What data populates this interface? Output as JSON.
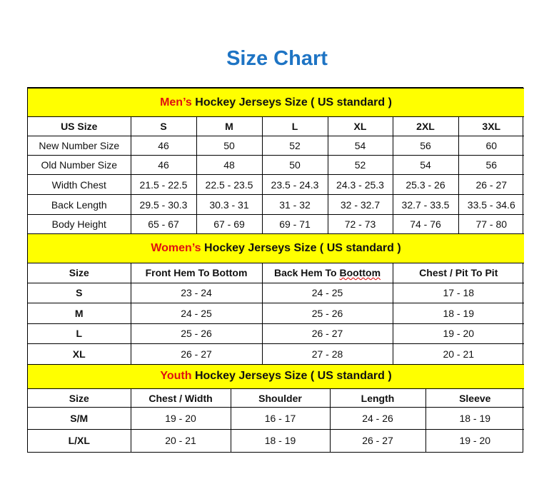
{
  "title": "Size Chart",
  "colors": {
    "title": "#1e74c4",
    "banner": "#ffff00",
    "highlight": "#e01010"
  },
  "men": {
    "banner_highlight": "Men’s",
    "banner_rest": " Hockey Jerseys Size ( US standard )",
    "headers": [
      "US Size",
      "S",
      "M",
      "L",
      "XL",
      "2XL",
      "3XL"
    ],
    "rows": [
      [
        "New Number Size",
        "46",
        "50",
        "52",
        "54",
        "56",
        "60"
      ],
      [
        "Old Number Size",
        "46",
        "48",
        "50",
        "52",
        "54",
        "56"
      ],
      [
        "Width Chest",
        "21.5 - 22.5",
        "22.5 - 23.5",
        "23.5 - 24.3",
        "24.3 - 25.3",
        "25.3 - 26",
        "26 - 27"
      ],
      [
        "Back Length",
        "29.5 - 30.3",
        "30.3 - 31",
        "31 - 32",
        "32 - 32.7",
        "32.7 - 33.5",
        "33.5 - 34.6"
      ],
      [
        "Body Height",
        "65 - 67",
        "67 - 69",
        "69 - 71",
        "72 - 73",
        "74 - 76",
        "77 - 80"
      ]
    ]
  },
  "women": {
    "banner_highlight": "Women’s",
    "banner_rest": " Hockey Jerseys Size ( US standard )",
    "headers": [
      "Size",
      "Front Hem To Bottom",
      "Back Hem To Boottom",
      "Chest / Pit To Pit"
    ],
    "rows": [
      [
        "S",
        "23 - 24",
        "24 - 25",
        "17 - 18"
      ],
      [
        "M",
        "24 - 25",
        "25 - 26",
        "18 - 19"
      ],
      [
        "L",
        "25 - 26",
        "26 - 27",
        "19 - 20"
      ],
      [
        "XL",
        "26 - 27",
        "27 - 28",
        "20 - 21"
      ]
    ]
  },
  "youth": {
    "banner_highlight": "Youth",
    "banner_rest": " Hockey Jerseys Size ( US standard )",
    "headers": [
      "Size",
      "Chest / Width",
      "Shoulder",
      "Length",
      "Sleeve"
    ],
    "rows": [
      [
        "S/M",
        "19 - 20",
        "16 - 17",
        "24 - 26",
        "18 - 19"
      ],
      [
        "L/XL",
        "20 - 21",
        "18 - 19",
        "26 - 27",
        "19 - 20"
      ]
    ]
  }
}
